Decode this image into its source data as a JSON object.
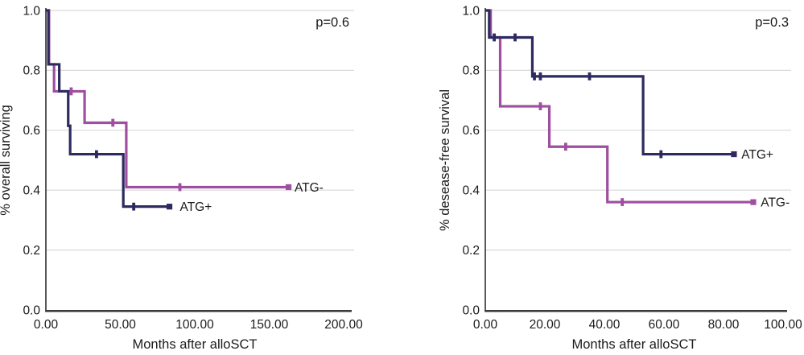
{
  "chart_data": [
    {
      "type": "line",
      "subtype": "kaplan-meier-step",
      "p_label": "p=0.6",
      "xlabel": "Months after alloSCT",
      "ylabel": "% overall surviving",
      "xlim": [
        0,
        200
      ],
      "ylim": [
        0.0,
        1.0
      ],
      "grid": true,
      "legend_position": "labels-at-curve-ends",
      "xticks": [
        {
          "value": 0,
          "label": "0.00"
        },
        {
          "value": 50,
          "label": "50.00"
        },
        {
          "value": 100,
          "label": "100.00"
        },
        {
          "value": 150,
          "label": "150.00"
        },
        {
          "value": 200,
          "label": "200.00"
        }
      ],
      "yticks": [
        {
          "value": 0.0,
          "label": "0.0"
        },
        {
          "value": 0.2,
          "label": "0.2"
        },
        {
          "value": 0.4,
          "label": "0.4"
        },
        {
          "value": 0.6,
          "label": "0.6"
        },
        {
          "value": 0.8,
          "label": "0.8"
        },
        {
          "value": 1.0,
          "label": "1.0"
        }
      ],
      "series": [
        {
          "name": "ATG-",
          "color": "#9e4fa0",
          "steps": [
            [
              0,
              1.0
            ],
            [
              2.1,
              0.82
            ],
            [
              5.5,
              0.73
            ],
            [
              26,
              0.625
            ],
            [
              54,
              0.41
            ]
          ],
          "end_x": 163,
          "censors": [
            [
              17,
              0.73
            ],
            [
              45,
              0.625
            ],
            [
              90,
              0.41
            ]
          ],
          "end_marker": [
            163,
            0.41
          ],
          "label_at": [
            167,
            0.41
          ]
        },
        {
          "name": "ATG+",
          "color": "#2d2a5f",
          "steps": [
            [
              0,
              1.0
            ],
            [
              1.7,
              0.82
            ],
            [
              9,
              0.73
            ],
            [
              15,
              0.615
            ],
            [
              16.3,
              0.52
            ],
            [
              52,
              0.345
            ]
          ],
          "end_x": 83,
          "censors": [
            [
              34,
              0.52
            ],
            [
              59,
              0.345
            ]
          ],
          "end_marker": [
            83,
            0.345
          ],
          "label_at": [
            90,
            0.345
          ]
        }
      ]
    },
    {
      "type": "line",
      "subtype": "kaplan-meier-step",
      "p_label": "p=0.3",
      "xlabel": "Months after alloSCT",
      "ylabel": "% desease-free survival",
      "xlim": [
        0,
        100
      ],
      "ylim": [
        0.0,
        1.0
      ],
      "grid": true,
      "legend_position": "labels-at-curve-ends",
      "xticks": [
        {
          "value": 0,
          "label": "0.00"
        },
        {
          "value": 20,
          "label": "20.00"
        },
        {
          "value": 40,
          "label": "40.00"
        },
        {
          "value": 60,
          "label": "60.00"
        },
        {
          "value": 80,
          "label": "80.00"
        },
        {
          "value": 100,
          "label": "100.00"
        }
      ],
      "yticks": [
        {
          "value": 0.0,
          "label": "0.0"
        },
        {
          "value": 0.2,
          "label": "0.2"
        },
        {
          "value": 0.4,
          "label": "0.4"
        },
        {
          "value": 0.6,
          "label": "0.6"
        },
        {
          "value": 0.8,
          "label": "0.8"
        },
        {
          "value": 1.0,
          "label": "1.0"
        }
      ],
      "series": [
        {
          "name": "ATG-",
          "color": "#9e4fa0",
          "steps": [
            [
              0,
              1.0
            ],
            [
              1.8,
              0.91
            ],
            [
              5,
              0.68
            ],
            [
              21.5,
              0.545
            ],
            [
              41,
              0.36
            ]
          ],
          "end_x": 90,
          "censors": [
            [
              18.5,
              0.68
            ],
            [
              27,
              0.545
            ],
            [
              46,
              0.36
            ]
          ],
          "end_marker": [
            90,
            0.36
          ],
          "label_at": [
            92.5,
            0.36
          ]
        },
        {
          "name": "ATG+",
          "color": "#2d2a5f",
          "steps": [
            [
              0,
              1.0
            ],
            [
              1.3,
              0.91
            ],
            [
              15.8,
              0.78
            ],
            [
              53,
              0.52
            ]
          ],
          "end_x": 83.5,
          "censors": [
            [
              3,
              0.91
            ],
            [
              10,
              0.91
            ],
            [
              16.5,
              0.78
            ],
            [
              18.5,
              0.78
            ],
            [
              35,
              0.78
            ],
            [
              59,
              0.52
            ]
          ],
          "end_marker": [
            83.5,
            0.52
          ],
          "label_at": [
            86,
            0.52
          ]
        }
      ]
    }
  ],
  "style": {
    "grid_color": "#d9d9d9",
    "axis_color": "#3c3c3c",
    "text_color": "#1b1b1b",
    "background": "#ffffff"
  }
}
